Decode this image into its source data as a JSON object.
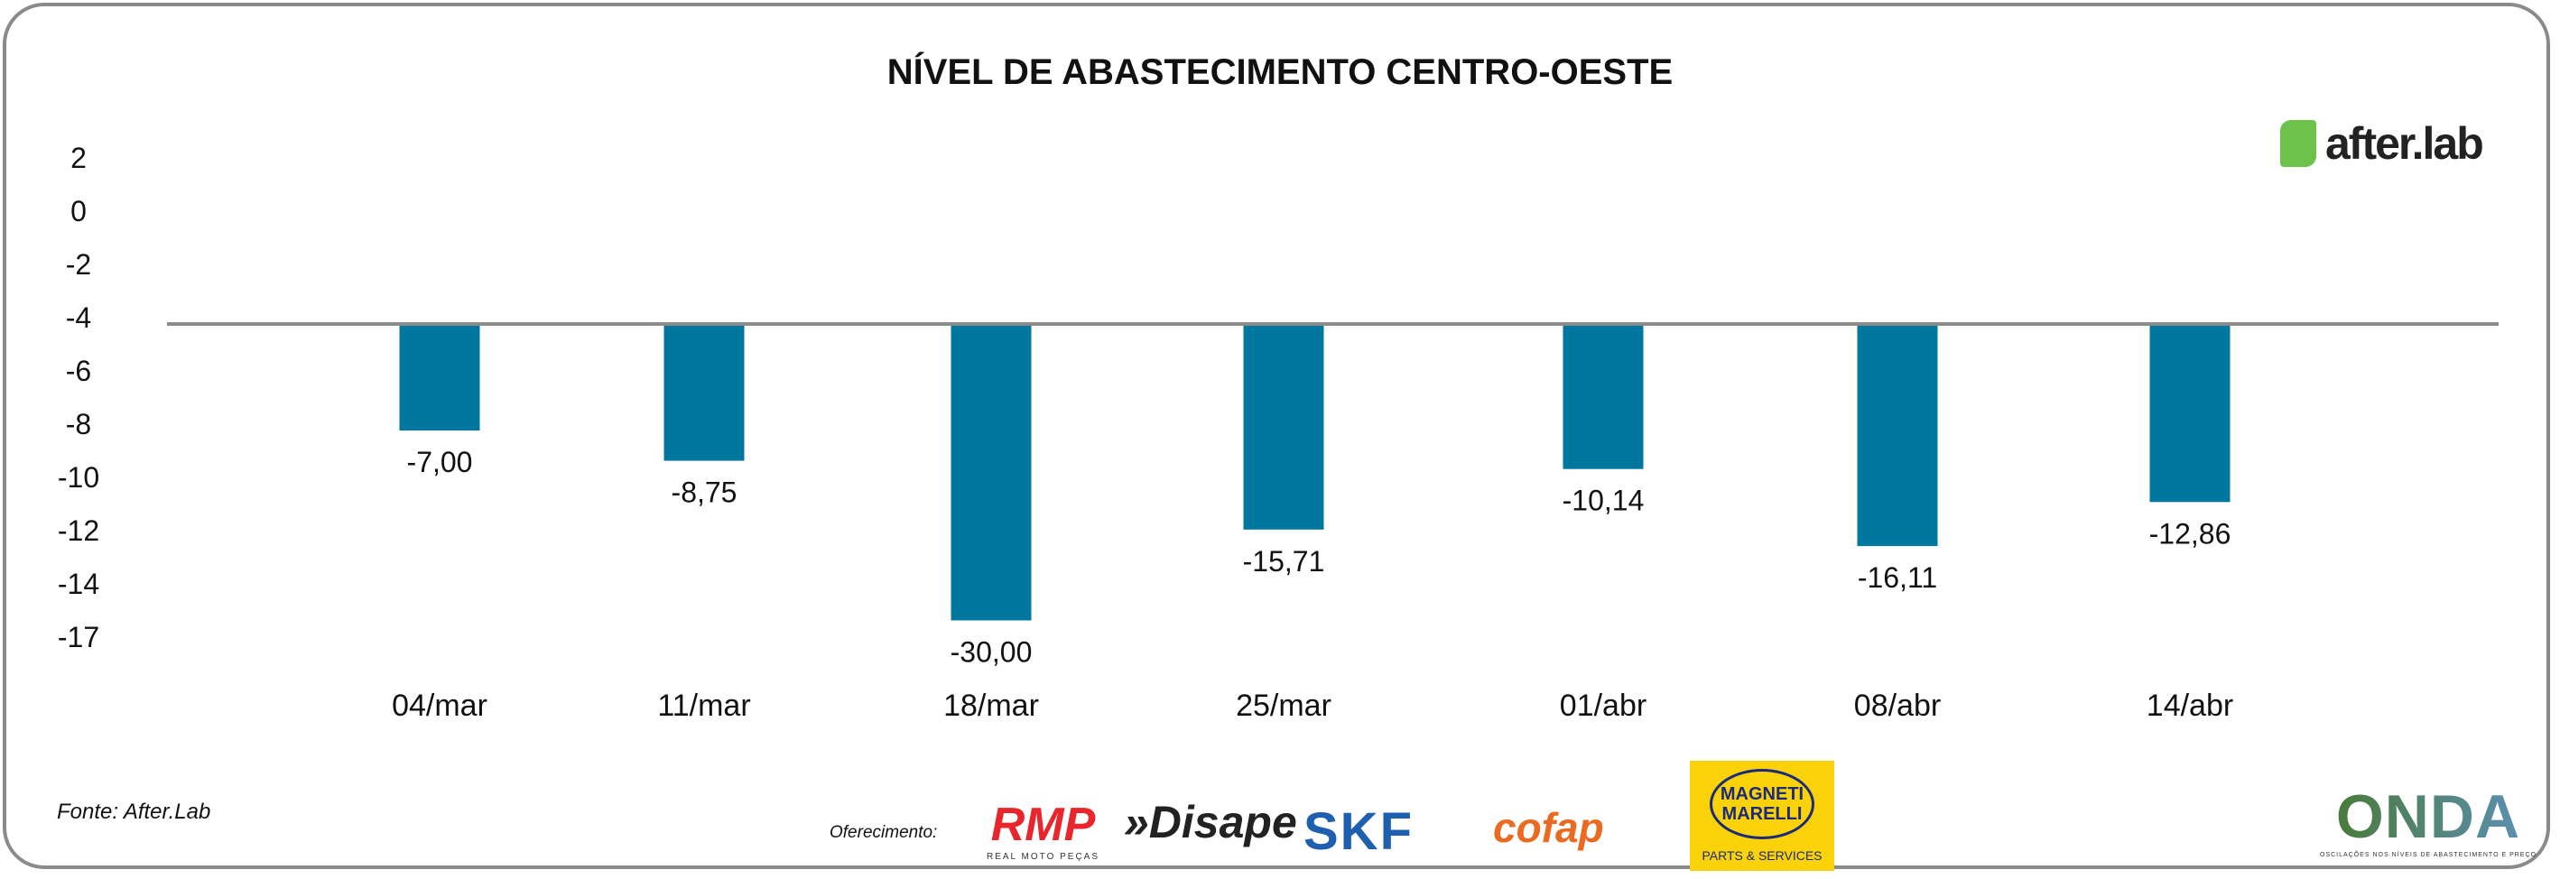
{
  "chart_data": {
    "type": "bar",
    "title": "NÍVEL DE ABASTECIMENTO CENTRO-OESTE",
    "categories": [
      "04/mar",
      "11/mar",
      "18/mar",
      "25/mar",
      "01/abr",
      "08/abr",
      "14/abr"
    ],
    "values": [
      -7.0,
      -8.75,
      -30.0,
      -15.71,
      -10.14,
      -16.11,
      -12.86
    ],
    "value_labels": [
      "-7,00",
      "-8,75",
      "-30,00",
      "-15,71",
      "-10,14",
      "-16,11",
      "-12,86"
    ],
    "plotted_axis_values": [
      -8.0,
      -9.1,
      -14.9,
      -11.6,
      -9.4,
      -12.2,
      -10.6
    ],
    "baseline": -4,
    "yticks": [
      "2",
      "0",
      "-2",
      "-4",
      "-6",
      "-8",
      "-10",
      "-12",
      "-14",
      "-17"
    ],
    "ylim": [
      -17,
      2
    ],
    "xlabel": "",
    "ylabel": "",
    "grid": false,
    "bar_color": "#00779e"
  },
  "source": "Fonte: After.Lab",
  "sponsor_label": "Oferecimento:",
  "logos": {
    "afterlab": "after.lab",
    "rmp": "RMP",
    "rmp_sub": "REAL MOTO PEÇAS",
    "disape": "»Disape",
    "skf": "SKF",
    "cofap": "cofap",
    "magneti_1": "MAGNETI",
    "magneti_2": "MARELLI",
    "magneti_sub": "PARTS & SERVICES",
    "onda": "ONDA",
    "onda_sub": "OSCILAÇÕES NOS NÍVEIS DE ABASTECIMENTO E PREÇO"
  }
}
